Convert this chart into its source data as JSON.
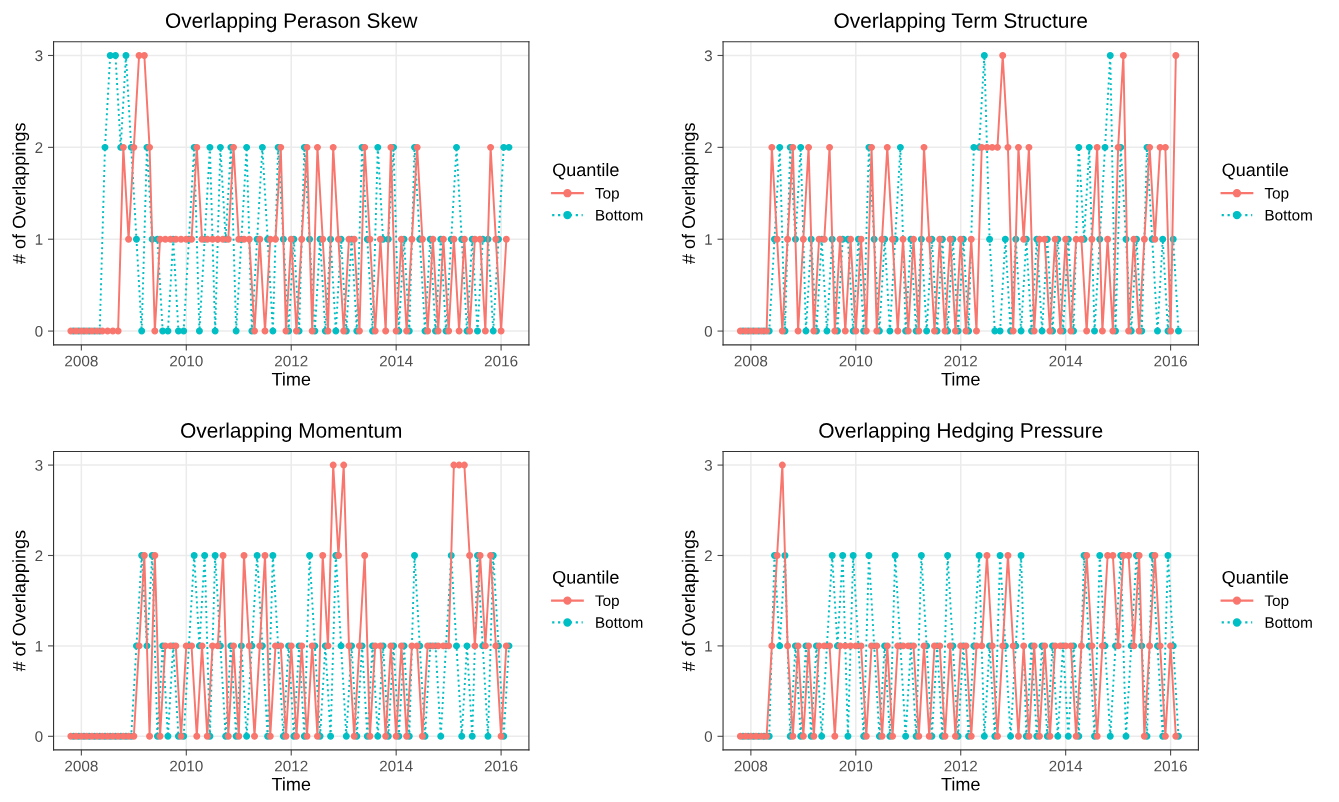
{
  "chart_data": [
    {
      "type": "line",
      "title": "Overlapping Perason Skew",
      "xlabel": "Time",
      "ylabel": "# of Overlappings",
      "legend_title": "Quantile",
      "legend": "right",
      "grid": true,
      "marker": "circle",
      "xlim": [
        2007.47,
        2016.53
      ],
      "xticks": [
        2008,
        2010,
        2012,
        2014,
        2016
      ],
      "ylim": [
        -0.15,
        3.15
      ],
      "yticks": [
        0,
        1,
        2,
        3
      ],
      "x": [
        2007.8,
        2007.9,
        2008.0,
        2008.1,
        2008.2,
        2008.3,
        2008.4,
        2008.5,
        2008.6,
        2008.7,
        2008.8,
        2008.9,
        2009.0,
        2009.1,
        2009.2,
        2009.3,
        2009.4,
        2009.5,
        2009.6,
        2009.7,
        2009.8,
        2009.9,
        2010.0,
        2010.1,
        2010.2,
        2010.3,
        2010.4,
        2010.5,
        2010.6,
        2010.7,
        2010.8,
        2010.9,
        2011.0,
        2011.1,
        2011.2,
        2011.3,
        2011.4,
        2011.5,
        2011.6,
        2011.7,
        2011.8,
        2011.9,
        2012.0,
        2012.1,
        2012.2,
        2012.3,
        2012.4,
        2012.5,
        2012.6,
        2012.7,
        2012.8,
        2012.9,
        2013.0,
        2013.1,
        2013.2,
        2013.3,
        2013.4,
        2013.5,
        2013.6,
        2013.7,
        2013.8,
        2013.9,
        2014.0,
        2014.1,
        2014.2,
        2014.3,
        2014.4,
        2014.5,
        2014.6,
        2014.7,
        2014.8,
        2014.9,
        2015.0,
        2015.1,
        2015.2,
        2015.3,
        2015.4,
        2015.5,
        2015.6,
        2015.7,
        2015.8,
        2015.9,
        2016.0,
        2016.1
      ],
      "series": [
        {
          "name": "Top",
          "color": "#f8766d",
          "line_style": "solid",
          "values": [
            0,
            0,
            0,
            0,
            0,
            0,
            0,
            0,
            0,
            0,
            2,
            1,
            2,
            3,
            3,
            2,
            0,
            1,
            1,
            1,
            1,
            1,
            1,
            1,
            2,
            1,
            1,
            1,
            1,
            1,
            1,
            2,
            1,
            1,
            1,
            0,
            1,
            0,
            1,
            1,
            2,
            0,
            1,
            0,
            1,
            2,
            0,
            2,
            1,
            0,
            2,
            1,
            0,
            1,
            1,
            0,
            2,
            1,
            0,
            1,
            0,
            2,
            0,
            1,
            0,
            1,
            2,
            1,
            0,
            1,
            0,
            1,
            0,
            1,
            0,
            1,
            0,
            1,
            1,
            0,
            2,
            1,
            0,
            1
          ]
        },
        {
          "name": "Bottom",
          "color": "#00bfc4",
          "line_style": "dotted",
          "x": [
            2007.85,
            2007.95,
            2008.05,
            2008.15,
            2008.25,
            2008.35,
            2008.45,
            2008.55,
            2008.65,
            2008.75,
            2008.85,
            2008.95,
            2009.05,
            2009.15,
            2009.25,
            2009.35,
            2009.45,
            2009.55,
            2009.65,
            2009.75,
            2009.85,
            2009.95,
            2010.05,
            2010.15,
            2010.25,
            2010.35,
            2010.45,
            2010.55,
            2010.65,
            2010.75,
            2010.85,
            2010.95,
            2011.05,
            2011.15,
            2011.25,
            2011.35,
            2011.45,
            2011.55,
            2011.65,
            2011.75,
            2011.85,
            2011.95,
            2012.05,
            2012.15,
            2012.25,
            2012.35,
            2012.45,
            2012.55,
            2012.65,
            2012.75,
            2012.85,
            2012.95,
            2013.05,
            2013.15,
            2013.25,
            2013.35,
            2013.45,
            2013.55,
            2013.65,
            2013.75,
            2013.85,
            2013.95,
            2014.05,
            2014.15,
            2014.25,
            2014.35,
            2014.45,
            2014.55,
            2014.65,
            2014.75,
            2014.85,
            2014.95,
            2015.05,
            2015.15,
            2015.25,
            2015.35,
            2015.45,
            2015.55,
            2015.65,
            2015.75,
            2015.85,
            2015.95,
            2016.05,
            2016.15
          ],
          "values": [
            0,
            0,
            0,
            0,
            0,
            0,
            2,
            3,
            3,
            2,
            3,
            2,
            1,
            0,
            2,
            1,
            1,
            0,
            0,
            1,
            0,
            0,
            1,
            2,
            0,
            1,
            2,
            0,
            2,
            1,
            2,
            0,
            1,
            2,
            0,
            1,
            2,
            1,
            0,
            2,
            1,
            0,
            1,
            0,
            2,
            1,
            0,
            1,
            0,
            1,
            0,
            1,
            0,
            1,
            0,
            2,
            1,
            0,
            2,
            1,
            1,
            2,
            0,
            1,
            0,
            2,
            1,
            0,
            1,
            0,
            1,
            0,
            1,
            2,
            1,
            0,
            1,
            0,
            1,
            1,
            0,
            1,
            2,
            2
          ]
        }
      ]
    },
    {
      "type": "line",
      "title": "Overlapping Term Structure",
      "xlabel": "Time",
      "ylabel": "# of Overlappings",
      "legend_title": "Quantile",
      "legend": "right",
      "grid": true,
      "marker": "circle",
      "xlim": [
        2007.47,
        2016.53
      ],
      "xticks": [
        2008,
        2010,
        2012,
        2014,
        2016
      ],
      "ylim": [
        -0.15,
        3.15
      ],
      "yticks": [
        0,
        1,
        2,
        3
      ],
      "x": [
        2007.8,
        2007.9,
        2008.0,
        2008.1,
        2008.2,
        2008.3,
        2008.4,
        2008.5,
        2008.6,
        2008.7,
        2008.8,
        2008.9,
        2009.0,
        2009.1,
        2009.2,
        2009.3,
        2009.4,
        2009.5,
        2009.6,
        2009.7,
        2009.8,
        2009.9,
        2010.0,
        2010.1,
        2010.2,
        2010.3,
        2010.4,
        2010.5,
        2010.6,
        2010.7,
        2010.8,
        2010.9,
        2011.0,
        2011.1,
        2011.2,
        2011.3,
        2011.4,
        2011.5,
        2011.6,
        2011.7,
        2011.8,
        2011.9,
        2012.0,
        2012.1,
        2012.2,
        2012.3,
        2012.4,
        2012.5,
        2012.6,
        2012.7,
        2012.8,
        2012.9,
        2013.0,
        2013.1,
        2013.2,
        2013.3,
        2013.4,
        2013.5,
        2013.6,
        2013.7,
        2013.8,
        2013.9,
        2014.0,
        2014.1,
        2014.2,
        2014.3,
        2014.4,
        2014.5,
        2014.6,
        2014.7,
        2014.8,
        2014.9,
        2015.0,
        2015.1,
        2015.2,
        2015.3,
        2015.4,
        2015.5,
        2015.6,
        2015.7,
        2015.8,
        2015.9,
        2016.0,
        2016.1
      ],
      "series": [
        {
          "name": "Top",
          "color": "#f8766d",
          "line_style": "solid",
          "values": [
            0,
            0,
            0,
            0,
            0,
            0,
            2,
            1,
            0,
            1,
            2,
            0,
            1,
            2,
            0,
            1,
            1,
            2,
            0,
            1,
            0,
            1,
            0,
            1,
            0,
            2,
            0,
            1,
            2,
            1,
            0,
            1,
            0,
            1,
            0,
            2,
            1,
            0,
            1,
            0,
            1,
            0,
            1,
            0,
            1,
            0,
            2,
            2,
            2,
            2,
            3,
            2,
            0,
            2,
            1,
            2,
            0,
            1,
            1,
            0,
            1,
            0,
            1,
            0,
            1,
            1,
            0,
            1,
            2,
            0,
            1,
            0,
            2,
            3,
            0,
            1,
            0,
            1,
            2,
            1,
            2,
            2,
            0,
            3
          ]
        },
        {
          "name": "Bottom",
          "color": "#00bfc4",
          "line_style": "dotted",
          "x": [
            2007.85,
            2007.95,
            2008.05,
            2008.15,
            2008.25,
            2008.35,
            2008.45,
            2008.55,
            2008.65,
            2008.75,
            2008.85,
            2008.95,
            2009.05,
            2009.15,
            2009.25,
            2009.35,
            2009.45,
            2009.55,
            2009.65,
            2009.75,
            2009.85,
            2009.95,
            2010.05,
            2010.15,
            2010.25,
            2010.35,
            2010.45,
            2010.55,
            2010.65,
            2010.75,
            2010.85,
            2010.95,
            2011.05,
            2011.15,
            2011.25,
            2011.35,
            2011.45,
            2011.55,
            2011.65,
            2011.75,
            2011.85,
            2011.95,
            2012.05,
            2012.15,
            2012.25,
            2012.35,
            2012.45,
            2012.55,
            2012.65,
            2012.75,
            2012.85,
            2012.95,
            2013.05,
            2013.15,
            2013.25,
            2013.35,
            2013.45,
            2013.55,
            2013.65,
            2013.75,
            2013.85,
            2013.95,
            2014.05,
            2014.15,
            2014.25,
            2014.35,
            2014.45,
            2014.55,
            2014.65,
            2014.75,
            2014.85,
            2014.95,
            2015.05,
            2015.15,
            2015.25,
            2015.35,
            2015.45,
            2015.55,
            2015.65,
            2015.75,
            2015.85,
            2015.95,
            2016.05,
            2016.15
          ],
          "values": [
            0,
            0,
            0,
            0,
            0,
            0,
            1,
            2,
            0,
            2,
            1,
            2,
            0,
            1,
            0,
            1,
            0,
            1,
            0,
            1,
            1,
            0,
            1,
            0,
            2,
            1,
            0,
            1,
            0,
            1,
            2,
            0,
            1,
            0,
            1,
            0,
            1,
            0,
            1,
            0,
            1,
            0,
            1,
            0,
            2,
            2,
            3,
            1,
            0,
            0,
            1,
            0,
            1,
            0,
            1,
            0,
            1,
            0,
            1,
            0,
            1,
            0,
            1,
            0,
            2,
            1,
            2,
            0,
            1,
            2,
            3,
            0,
            2,
            1,
            0,
            1,
            0,
            2,
            1,
            0,
            1,
            0,
            1,
            0
          ]
        }
      ]
    },
    {
      "type": "line",
      "title": "Overlapping Momentum",
      "xlabel": "Time",
      "ylabel": "# of Overlappings",
      "legend_title": "Quantile",
      "legend": "right",
      "grid": true,
      "marker": "circle",
      "xlim": [
        2007.47,
        2016.53
      ],
      "xticks": [
        2008,
        2010,
        2012,
        2014,
        2016
      ],
      "ylim": [
        -0.15,
        3.15
      ],
      "yticks": [
        0,
        1,
        2,
        3
      ],
      "x": [
        2007.8,
        2007.9,
        2008.0,
        2008.1,
        2008.2,
        2008.3,
        2008.4,
        2008.5,
        2008.6,
        2008.7,
        2008.8,
        2008.9,
        2009.0,
        2009.1,
        2009.2,
        2009.3,
        2009.4,
        2009.5,
        2009.6,
        2009.7,
        2009.8,
        2009.9,
        2010.0,
        2010.1,
        2010.2,
        2010.3,
        2010.4,
        2010.5,
        2010.6,
        2010.7,
        2010.8,
        2010.9,
        2011.0,
        2011.1,
        2011.2,
        2011.3,
        2011.4,
        2011.5,
        2011.6,
        2011.7,
        2011.8,
        2011.9,
        2012.0,
        2012.1,
        2012.2,
        2012.3,
        2012.4,
        2012.5,
        2012.6,
        2012.7,
        2012.8,
        2012.9,
        2013.0,
        2013.1,
        2013.2,
        2013.3,
        2013.4,
        2013.5,
        2013.6,
        2013.7,
        2013.8,
        2013.9,
        2014.0,
        2014.1,
        2014.2,
        2014.3,
        2014.4,
        2014.5,
        2014.6,
        2014.7,
        2014.8,
        2014.9,
        2015.0,
        2015.1,
        2015.2,
        2015.3,
        2015.4,
        2015.5,
        2015.6,
        2015.7,
        2015.8,
        2015.9,
        2016.0,
        2016.1
      ],
      "series": [
        {
          "name": "Top",
          "color": "#f8766d",
          "line_style": "solid",
          "values": [
            0,
            0,
            0,
            0,
            0,
            0,
            0,
            0,
            0,
            0,
            0,
            0,
            0,
            1,
            2,
            0,
            2,
            0,
            1,
            1,
            1,
            0,
            1,
            1,
            0,
            1,
            0,
            1,
            1,
            2,
            0,
            1,
            0,
            2,
            1,
            0,
            1,
            2,
            0,
            1,
            1,
            0,
            1,
            0,
            1,
            0,
            1,
            0,
            2,
            1,
            3,
            2,
            3,
            1,
            0,
            1,
            2,
            0,
            1,
            1,
            0,
            1,
            0,
            1,
            0,
            1,
            1,
            0,
            1,
            1,
            1,
            1,
            1,
            3,
            3,
            3,
            2,
            1,
            2,
            1,
            2,
            1,
            0,
            1
          ]
        },
        {
          "name": "Bottom",
          "color": "#00bfc4",
          "line_style": "dotted",
          "x": [
            2007.85,
            2007.95,
            2008.05,
            2008.15,
            2008.25,
            2008.35,
            2008.45,
            2008.55,
            2008.65,
            2008.75,
            2008.85,
            2008.95,
            2009.05,
            2009.15,
            2009.25,
            2009.35,
            2009.45,
            2009.55,
            2009.65,
            2009.75,
            2009.85,
            2009.95,
            2010.05,
            2010.15,
            2010.25,
            2010.35,
            2010.45,
            2010.55,
            2010.65,
            2010.75,
            2010.85,
            2010.95,
            2011.05,
            2011.15,
            2011.25,
            2011.35,
            2011.45,
            2011.55,
            2011.65,
            2011.75,
            2011.85,
            2011.95,
            2012.05,
            2012.15,
            2012.25,
            2012.35,
            2012.45,
            2012.55,
            2012.65,
            2012.75,
            2012.85,
            2012.95,
            2013.05,
            2013.15,
            2013.25,
            2013.35,
            2013.45,
            2013.55,
            2013.65,
            2013.75,
            2013.85,
            2013.95,
            2014.05,
            2014.15,
            2014.25,
            2014.35,
            2014.45,
            2014.55,
            2014.65,
            2014.75,
            2014.85,
            2014.95,
            2015.05,
            2015.15,
            2015.25,
            2015.35,
            2015.45,
            2015.55,
            2015.65,
            2015.75,
            2015.85,
            2015.95,
            2016.05,
            2016.15
          ],
          "values": [
            0,
            0,
            0,
            0,
            0,
            0,
            0,
            0,
            0,
            0,
            0,
            0,
            1,
            2,
            1,
            2,
            0,
            1,
            0,
            1,
            0,
            0,
            1,
            2,
            1,
            2,
            0,
            2,
            1,
            0,
            1,
            0,
            1,
            0,
            1,
            2,
            1,
            0,
            2,
            1,
            0,
            1,
            0,
            1,
            0,
            2,
            1,
            0,
            1,
            0,
            2,
            1,
            0,
            1,
            0,
            1,
            0,
            1,
            0,
            1,
            0,
            1,
            0,
            1,
            0,
            2,
            1,
            0,
            1,
            1,
            0,
            1,
            2,
            1,
            0,
            1,
            0,
            2,
            1,
            0,
            2,
            1,
            0,
            1
          ]
        }
      ]
    },
    {
      "type": "line",
      "title": "Overlapping Hedging Pressure",
      "xlabel": "Time",
      "ylabel": "# of Overlappings",
      "legend_title": "Quantile",
      "legend": "right",
      "grid": true,
      "marker": "circle",
      "xlim": [
        2007.47,
        2016.53
      ],
      "xticks": [
        2008,
        2010,
        2012,
        2014,
        2016
      ],
      "ylim": [
        -0.15,
        3.15
      ],
      "yticks": [
        0,
        1,
        2,
        3
      ],
      "x": [
        2007.8,
        2007.9,
        2008.0,
        2008.1,
        2008.2,
        2008.3,
        2008.4,
        2008.5,
        2008.6,
        2008.7,
        2008.8,
        2008.9,
        2009.0,
        2009.1,
        2009.2,
        2009.3,
        2009.4,
        2009.5,
        2009.6,
        2009.7,
        2009.8,
        2009.9,
        2010.0,
        2010.1,
        2010.2,
        2010.3,
        2010.4,
        2010.5,
        2010.6,
        2010.7,
        2010.8,
        2010.9,
        2011.0,
        2011.1,
        2011.2,
        2011.3,
        2011.4,
        2011.5,
        2011.6,
        2011.7,
        2011.8,
        2011.9,
        2012.0,
        2012.1,
        2012.2,
        2012.3,
        2012.4,
        2012.5,
        2012.6,
        2012.7,
        2012.8,
        2012.9,
        2013.0,
        2013.1,
        2013.2,
        2013.3,
        2013.4,
        2013.5,
        2013.6,
        2013.7,
        2013.8,
        2013.9,
        2014.0,
        2014.1,
        2014.2,
        2014.3,
        2014.4,
        2014.5,
        2014.6,
        2014.7,
        2014.8,
        2014.9,
        2015.0,
        2015.1,
        2015.2,
        2015.3,
        2015.4,
        2015.5,
        2015.6,
        2015.7,
        2015.8,
        2015.9,
        2016.0,
        2016.1
      ],
      "series": [
        {
          "name": "Top",
          "color": "#f8766d",
          "line_style": "solid",
          "values": [
            0,
            0,
            0,
            0,
            0,
            0,
            1,
            2,
            3,
            1,
            0,
            1,
            0,
            1,
            0,
            1,
            1,
            1,
            0,
            1,
            1,
            1,
            1,
            1,
            0,
            1,
            1,
            0,
            1,
            0,
            1,
            1,
            1,
            1,
            0,
            1,
            0,
            1,
            1,
            0,
            1,
            0,
            1,
            1,
            0,
            1,
            1,
            2,
            1,
            0,
            1,
            2,
            1,
            0,
            1,
            0,
            1,
            0,
            1,
            0,
            1,
            1,
            1,
            1,
            0,
            1,
            2,
            1,
            0,
            1,
            2,
            2,
            1,
            2,
            2,
            1,
            2,
            0,
            1,
            2,
            1,
            0,
            1,
            0
          ]
        },
        {
          "name": "Bottom",
          "color": "#00bfc4",
          "line_style": "dotted",
          "x": [
            2007.85,
            2007.95,
            2008.05,
            2008.15,
            2008.25,
            2008.35,
            2008.45,
            2008.55,
            2008.65,
            2008.75,
            2008.85,
            2008.95,
            2009.05,
            2009.15,
            2009.25,
            2009.35,
            2009.45,
            2009.55,
            2009.65,
            2009.75,
            2009.85,
            2009.95,
            2010.05,
            2010.15,
            2010.25,
            2010.35,
            2010.45,
            2010.55,
            2010.65,
            2010.75,
            2010.85,
            2010.95,
            2011.05,
            2011.15,
            2011.25,
            2011.35,
            2011.45,
            2011.55,
            2011.65,
            2011.75,
            2011.85,
            2011.95,
            2012.05,
            2012.15,
            2012.25,
            2012.35,
            2012.45,
            2012.55,
            2012.65,
            2012.75,
            2012.85,
            2012.95,
            2013.05,
            2013.15,
            2013.25,
            2013.35,
            2013.45,
            2013.55,
            2013.65,
            2013.75,
            2013.85,
            2013.95,
            2014.05,
            2014.15,
            2014.25,
            2014.35,
            2014.45,
            2014.55,
            2014.65,
            2014.75,
            2014.85,
            2014.95,
            2015.05,
            2015.15,
            2015.25,
            2015.35,
            2015.45,
            2015.55,
            2015.65,
            2015.75,
            2015.85,
            2015.95,
            2016.05,
            2016.15
          ],
          "values": [
            0,
            0,
            0,
            0,
            0,
            0,
            2,
            1,
            2,
            0,
            1,
            0,
            1,
            0,
            1,
            0,
            1,
            2,
            1,
            2,
            0,
            2,
            1,
            0,
            2,
            1,
            0,
            1,
            0,
            2,
            1,
            0,
            1,
            0,
            2,
            1,
            0,
            1,
            0,
            2,
            1,
            0,
            1,
            0,
            1,
            2,
            0,
            1,
            0,
            2,
            1,
            0,
            1,
            2,
            0,
            1,
            0,
            1,
            0,
            1,
            0,
            1,
            0,
            1,
            0,
            2,
            1,
            0,
            2,
            1,
            0,
            1,
            2,
            0,
            1,
            2,
            1,
            0,
            2,
            1,
            0,
            2,
            1,
            0
          ]
        }
      ]
    }
  ]
}
